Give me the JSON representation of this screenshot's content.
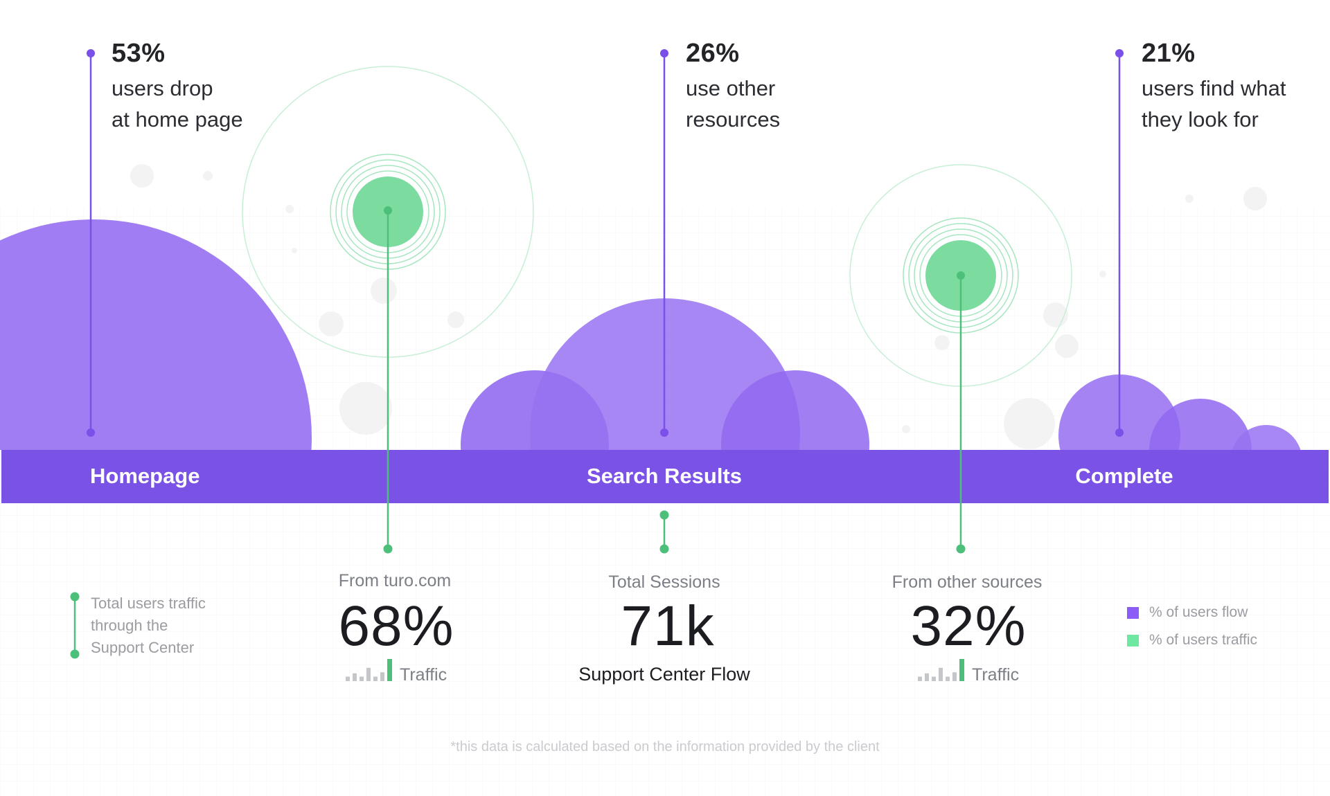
{
  "colors": {
    "purple_bar": "#7b52e6",
    "purple_bubble": "#9872f1",
    "purple_line": "#7a50e8",
    "green": "#7cdca0",
    "green_line": "#4cbf7a",
    "green_ring": "#c7efd6"
  },
  "chart_data": {
    "type": "bubble-funnel",
    "stages": [
      {
        "name": "Homepage",
        "drop_pct": "53%",
        "drop_text": [
          "users drop",
          "at home page"
        ]
      },
      {
        "name": "Search Results",
        "drop_pct": "26%",
        "drop_text": [
          "use other",
          "resources"
        ]
      },
      {
        "name": "Complete",
        "drop_pct": "21%",
        "drop_text": [
          "users find what",
          "they look for"
        ]
      }
    ],
    "traffic_sources": [
      {
        "label": "From turo.com",
        "value": "68%",
        "caption": "Traffic",
        "sparkline": [
          0.2,
          0.35,
          0.2,
          0.6,
          0.2,
          0.4,
          1.0
        ]
      },
      {
        "label": "From other sources",
        "value": "32%",
        "caption": "Traffic",
        "sparkline": [
          0.2,
          0.35,
          0.2,
          0.6,
          0.2,
          0.4,
          1.0
        ]
      }
    ],
    "total": {
      "label": "Total Sessions",
      "value": "71k",
      "caption": "Support Center Flow"
    },
    "legend": [
      {
        "label": "% of users flow",
        "color": "#8b5cf6"
      },
      {
        "label": "% of users traffic",
        "color": "#6ee7a0"
      }
    ],
    "side_note": [
      "Total users traffic",
      "through the",
      "Support Center"
    ],
    "footnote": "*this data is calculated based on the information provided by the client"
  }
}
